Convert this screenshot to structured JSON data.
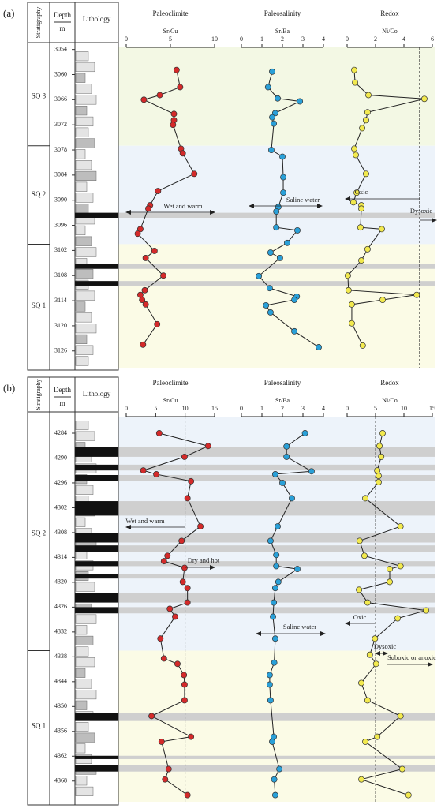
{
  "headers": {
    "stratigraphy": "Stratigraphy",
    "depth": "Depth",
    "depth_unit": "m",
    "lithology": "Lithology"
  },
  "panels": [
    {
      "label": "(a)",
      "depth_lim": [
        3053.5,
        3130
      ],
      "depth_ticks": [
        3054,
        3060,
        3066,
        3072,
        3078,
        3084,
        3090,
        3096,
        3102,
        3108,
        3114,
        3120,
        3126
      ],
      "sequences": [
        {
          "name": "SQ 3",
          "top": 3053.5,
          "base": 3077
        },
        {
          "name": "SQ 2",
          "top": 3077,
          "base": 3100.5
        },
        {
          "name": "SQ 1",
          "top": 3100.5,
          "base": 3130
        }
      ],
      "charts": [
        {
          "type": "line",
          "title": "Paleoclimite",
          "xlabel": "Sr/Cu",
          "xlim": [
            0,
            10
          ],
          "xticks": [
            0,
            5,
            10
          ],
          "color": "#d42a2a",
          "depth": [
            3058.9,
            3063,
            3064.9,
            3066,
            3069.4,
            3070.9,
            3072,
            3077.7,
            3078.8,
            3083.7,
            3087.8,
            3091.2,
            3092,
            3096.9,
            3098,
            3102.1,
            3103.8,
            3108,
            3111.5,
            3112.6,
            3113.8,
            3114.9,
            3119.6,
            3124.5
          ],
          "values": [
            5.7,
            6.1,
            3.8,
            2,
            5.4,
            5.4,
            5.3,
            6.2,
            6.4,
            7.7,
            3.6,
            2.7,
            2.5,
            1.6,
            1.3,
            3.2,
            2.2,
            4.2,
            2.1,
            1.6,
            1.8,
            2.2,
            3.5,
            1.9
          ],
          "reference_lines": [],
          "annotations": [
            "Wet and warm"
          ]
        },
        {
          "type": "line",
          "title": "Paleosalinity",
          "xlabel": "Sr/Ba",
          "xlim": [
            0,
            4
          ],
          "xticks": [
            0,
            1,
            2,
            3,
            4
          ],
          "color": "#2aa0d8",
          "depth": [
            3059.3,
            3063,
            3065.7,
            3066.4,
            3069.2,
            3070.2,
            3071.7,
            3078,
            3079.6,
            3084.5,
            3088.2,
            3091.6,
            3092.7,
            3096.5,
            3097.2,
            3100.2,
            3102.5,
            3103.8,
            3108.1,
            3111,
            3113,
            3113.8,
            3115.1,
            3116.8,
            3121.3,
            3125.1
          ],
          "values": [
            1.5,
            1.3,
            1.77,
            2.85,
            1.65,
            1.5,
            1.58,
            1.46,
            2,
            2.04,
            2.04,
            1.8,
            1.7,
            1.7,
            2.73,
            2.23,
            1.42,
            1.88,
            0.85,
            1.38,
            2.7,
            2.58,
            1.2,
            1.42,
            2.58,
            3.77
          ],
          "reference_lines": [],
          "annotations": [
            "Saline water"
          ]
        },
        {
          "type": "line",
          "title": "Redox",
          "xlabel": "Ni/Co",
          "xlim": [
            0,
            6
          ],
          "xticks": [
            0,
            2,
            4,
            6
          ],
          "color": "#f2e94e",
          "depth": [
            3058.9,
            3061.9,
            3064.9,
            3065.8,
            3069,
            3070.9,
            3072.8,
            3077.7,
            3079.2,
            3083.7,
            3088.2,
            3090.5,
            3091.2,
            3092,
            3096.5,
            3096.9,
            3101.7,
            3104.4,
            3108,
            3111.5,
            3112.6,
            3113.8,
            3114.9,
            3119.4,
            3124.7
          ],
          "values": [
            0.5,
            0.56,
            1.5,
            5.44,
            1.44,
            1.33,
            1.06,
            0.5,
            0.61,
            1.33,
            0.67,
            0.44,
            1,
            1,
            0.94,
            2.44,
            1.44,
            1,
            0.05,
            0.1,
            4.9,
            2.5,
            0.33,
            0.33,
            1.1
          ],
          "reference_lines": [
            5.1
          ],
          "annotations": [
            "Oxic",
            "Dysoxic"
          ]
        }
      ]
    },
    {
      "label": "(b)",
      "depth_lim": [
        4280,
        4373
      ],
      "depth_ticks": [
        4284,
        4290,
        4296,
        4302,
        4308,
        4314,
        4320,
        4326,
        4332,
        4338,
        4344,
        4350,
        4356,
        4362,
        4368
      ],
      "sequences": [
        {
          "name": "SQ 2",
          "top": 4280,
          "base": 4336.5
        },
        {
          "name": "SQ 1",
          "top": 4336.5,
          "base": 4373
        }
      ],
      "charts": [
        {
          "type": "line",
          "title": "Paleoclimite",
          "xlabel": "Sr/Cu",
          "xlim": [
            0,
            15
          ],
          "xticks": [
            0,
            5,
            10,
            15
          ],
          "color": "#d42a2a",
          "depth": [
            4284,
            4287.1,
            4289.7,
            4293,
            4293.9,
            4295.6,
            4299.7,
            4306.5,
            4310,
            4313.6,
            4314.9,
            4316.5,
            4319.9,
            4321.4,
            4324.9,
            4326.4,
            4328.3,
            4333.6,
            4338.4,
            4339.7,
            4342.4,
            4344.7,
            4348.5,
            4352.3,
            4357.3,
            4358.5,
            4365.1,
            4367.6,
            4371.4
          ],
          "values": [
            5.6,
            13.9,
            9.9,
            2.9,
            5.1,
            11,
            10.4,
            12.6,
            9.4,
            7,
            6.4,
            9.9,
            9.6,
            10.4,
            10.4,
            7.4,
            8.3,
            5.8,
            6.4,
            8.7,
            9.8,
            9.9,
            9.9,
            4.3,
            11,
            6,
            7.2,
            6.6,
            10.4
          ],
          "reference_lines": [
            10
          ],
          "annotations": [
            "Wet and warm",
            "Dry and hot"
          ]
        },
        {
          "type": "line",
          "title": "Paleosalinity",
          "xlabel": "Sr/Ba",
          "xlim": [
            0,
            4
          ],
          "xticks": [
            0,
            1,
            2,
            3,
            4
          ],
          "color": "#2aa0d8",
          "depth": [
            4284,
            4287.2,
            4289.7,
            4293.2,
            4293.9,
            4296,
            4299.7,
            4306.5,
            4310,
            4313.4,
            4316.1,
            4316.8,
            4319.9,
            4321.4,
            4324.9,
            4328.3,
            4333.6,
            4339.4,
            4342.4,
            4344.7,
            4348.5,
            4357.3,
            4358.5,
            4365.1,
            4367.6,
            4371.4
          ],
          "values": [
            3.1,
            2.2,
            2.2,
            3.42,
            1.65,
            2,
            2.46,
            1.77,
            1.42,
            1.7,
            1.7,
            2.73,
            1.8,
            1.65,
            1.58,
            1.54,
            1.65,
            1.6,
            1.38,
            1.38,
            1.42,
            1.58,
            1.5,
            1.85,
            1.6,
            1.65
          ],
          "reference_lines": [],
          "annotations": [
            "Saline water"
          ]
        },
        {
          "type": "line",
          "title": "Redox",
          "xlabel": "Ni/Co",
          "xlim": [
            0,
            15
          ],
          "xticks": [
            0,
            5,
            10,
            15
          ],
          "color": "#f2e94e",
          "depth": [
            4284,
            4287.1,
            4289.7,
            4293,
            4294.3,
            4295.8,
            4299.7,
            4306.5,
            4310,
            4313.6,
            4316.1,
            4316.8,
            4319.9,
            4321.8,
            4324.9,
            4326.8,
            4328.7,
            4333.6,
            4337.5,
            4339.7,
            4344.3,
            4348.5,
            4352.3,
            4357.3,
            4358.5,
            4365.1,
            4367.6,
            4371.4
          ],
          "values": [
            6.25,
            5.7,
            6,
            5.3,
            5.55,
            5.55,
            3.2,
            9.4,
            2.2,
            3.05,
            9.4,
            7.5,
            7.5,
            2.1,
            3.6,
            13.9,
            8.9,
            4.9,
            4,
            5.1,
            2.5,
            3.6,
            9.4,
            5.3,
            3.2,
            9.7,
            2.5,
            10.8
          ],
          "reference_lines": [
            5,
            7
          ],
          "annotations": [
            "Oxic",
            "Dysoxic",
            "Suboxic or anoxic"
          ]
        }
      ]
    }
  ]
}
